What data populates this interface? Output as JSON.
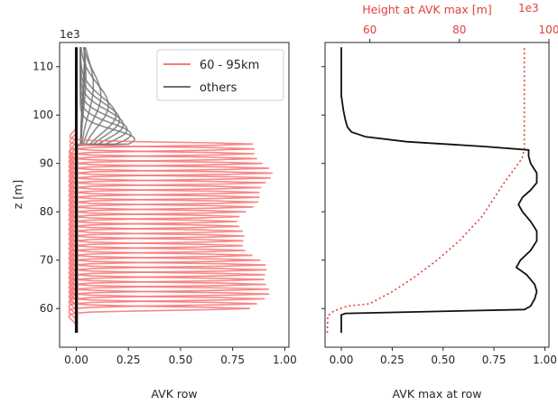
{
  "chart_data": [
    {
      "type": "line",
      "panel": "left",
      "xlabel": "AVK row",
      "ylabel": "z [m]",
      "y_offset_label": "1e3",
      "xlim": [
        -0.08,
        1.02
      ],
      "ylim": [
        52,
        115
      ],
      "xticks": [
        "0.00",
        "0.25",
        "0.50",
        "0.75",
        "1.00"
      ],
      "xtick_values": [
        0,
        0.25,
        0.5,
        0.75,
        1.0
      ],
      "yticks": [
        "60",
        "70",
        "80",
        "90",
        "100",
        "110"
      ],
      "ytick_values": [
        60,
        70,
        80,
        90,
        100,
        110
      ],
      "legend": {
        "placement": "top-right",
        "entries": [
          {
            "label": "60 - 95km",
            "color": "#f77a7a"
          },
          {
            "label": "others",
            "color": "#707070"
          }
        ]
      },
      "series": [
        {
          "name": "60 - 95km",
          "color": "#f77a7a",
          "peak_heights_km": [
            60,
            61,
            62,
            63,
            64,
            65,
            66,
            67,
            68,
            69,
            70,
            71,
            72,
            73,
            74,
            75,
            76,
            77,
            78,
            79,
            80,
            81,
            82,
            83,
            84,
            85,
            86,
            87,
            88,
            89,
            90,
            91,
            92,
            93,
            94
          ]
        },
        {
          "name": "others",
          "color": "#707070",
          "peak_heights_km": [
            55,
            56,
            57,
            58,
            59,
            95,
            96,
            97,
            98,
            99,
            100,
            102,
            104,
            106,
            108,
            110,
            112,
            114
          ]
        }
      ]
    },
    {
      "type": "line",
      "panel": "right",
      "xlabel": "AVK max at row",
      "top_xlabel": "Height at AVK max [m]",
      "top_offset_label": "1e3",
      "top_color": "#e0413c",
      "xlim": [
        -0.08,
        1.02
      ],
      "ylim": [
        52,
        115
      ],
      "xticks": [
        "0.00",
        "0.25",
        "0.50",
        "0.75",
        "1.00"
      ],
      "xtick_values": [
        0,
        0.25,
        0.5,
        0.75,
        1.0
      ],
      "top_xlim": [
        50,
        100
      ],
      "top_xticks": [
        "60",
        "80",
        "100"
      ],
      "top_xtick_values": [
        60,
        80,
        100
      ],
      "series": [
        {
          "name": "AVK max at row",
          "color": "#111111",
          "points": [
            [
              0.0,
              55
            ],
            [
              0.0,
              58.7
            ],
            [
              0.02,
              59.0
            ],
            [
              0.9,
              59.8
            ],
            [
              0.93,
              60.5
            ],
            [
              0.95,
              62
            ],
            [
              0.96,
              63.5
            ],
            [
              0.95,
              65
            ],
            [
              0.91,
              67
            ],
            [
              0.86,
              68.5
            ],
            [
              0.88,
              70
            ],
            [
              0.93,
              72
            ],
            [
              0.96,
              74
            ],
            [
              0.96,
              76
            ],
            [
              0.93,
              78
            ],
            [
              0.89,
              80
            ],
            [
              0.87,
              81.5
            ],
            [
              0.89,
              83
            ],
            [
              0.93,
              84.5
            ],
            [
              0.96,
              86
            ],
            [
              0.96,
              88
            ],
            [
              0.93,
              90
            ],
            [
              0.92,
              91.5
            ],
            [
              0.92,
              92.8
            ],
            [
              0.7,
              93.5
            ],
            [
              0.32,
              94.5
            ],
            [
              0.12,
              95.5
            ],
            [
              0.05,
              96.5
            ],
            [
              0.03,
              97.5
            ],
            [
              0.02,
              99
            ],
            [
              0.01,
              101
            ],
            [
              0.0,
              104
            ],
            [
              0.0,
              114
            ]
          ]
        },
        {
          "name": "Height at AVK max",
          "color": "#e0413c",
          "axis": "top",
          "points": [
            [
              50.5,
              55
            ],
            [
              50.6,
              58.5
            ],
            [
              52,
              59.5
            ],
            [
              55,
              60.5
            ],
            [
              60,
              61
            ],
            [
              65,
              63.5
            ],
            [
              70,
              66.5
            ],
            [
              75,
              70
            ],
            [
              80,
              74
            ],
            [
              85,
              79
            ],
            [
              90,
              86
            ],
            [
              94,
              91
            ],
            [
              94.5,
              93
            ],
            [
              94.5,
              100
            ],
            [
              94.5,
              114
            ]
          ]
        }
      ]
    }
  ]
}
